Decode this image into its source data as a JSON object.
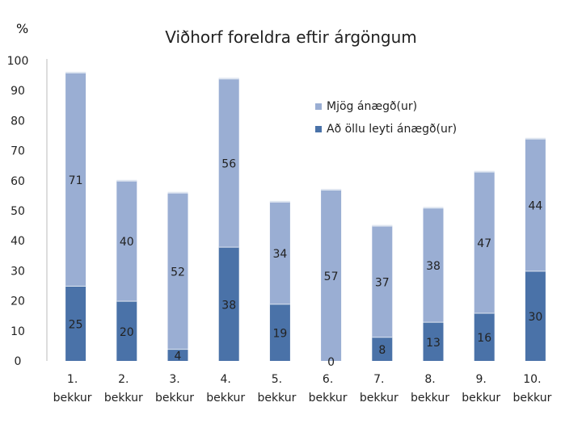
{
  "chart_data": {
    "type": "bar",
    "stacked": true,
    "title": "Viðhorf foreldra eftir árgöngum",
    "ylabel": "%",
    "xlabel": "",
    "ylim": [
      0,
      100
    ],
    "yticks": [
      0,
      10,
      20,
      30,
      40,
      50,
      60,
      70,
      80,
      90,
      100
    ],
    "grid": false,
    "legend_position": "right",
    "categories": [
      [
        "1.",
        "bekkur"
      ],
      [
        "2.",
        "bekkur"
      ],
      [
        "3.",
        "bekkur"
      ],
      [
        "4.",
        "bekkur"
      ],
      [
        "5.",
        "bekkur"
      ],
      [
        "6.",
        "bekkur"
      ],
      [
        "7.",
        "bekkur"
      ],
      [
        "8.",
        "bekkur"
      ],
      [
        "9.",
        "bekkur"
      ],
      [
        "10.",
        "bekkur"
      ]
    ],
    "series": [
      {
        "name": "Að öllu leyti ánægð(ur)",
        "color": "#4a72a8",
        "values": [
          25,
          20,
          4,
          38,
          19,
          0,
          8,
          13,
          16,
          30
        ]
      },
      {
        "name": "Mjög ánægð(ur)",
        "color": "#9aaed3",
        "values": [
          71,
          40,
          52,
          56,
          34,
          57,
          37,
          38,
          47,
          44
        ]
      }
    ],
    "legend_order": [
      1,
      0
    ]
  }
}
